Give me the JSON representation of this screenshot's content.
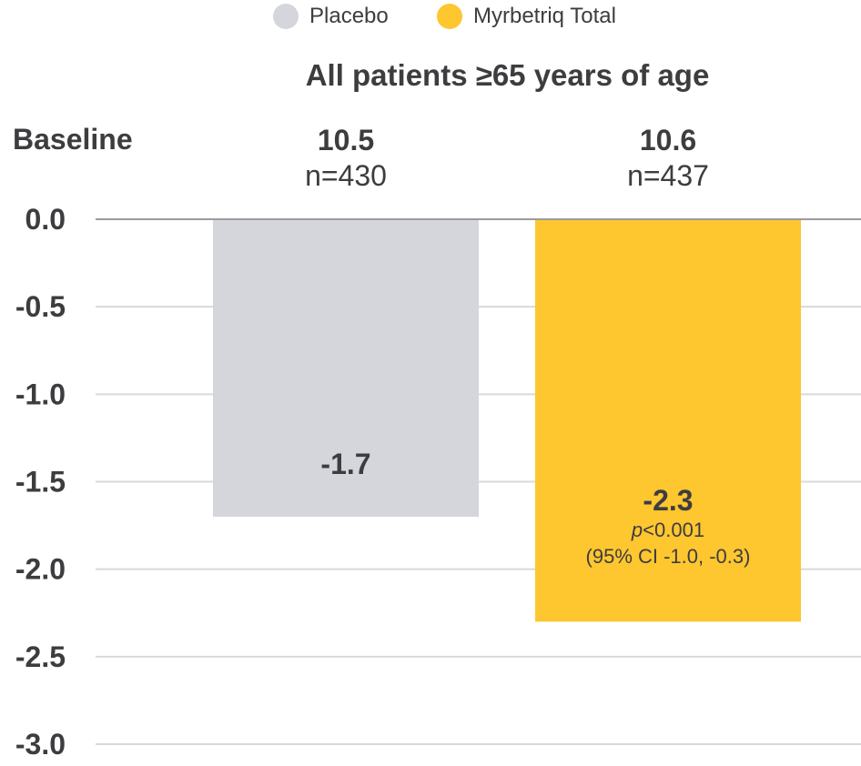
{
  "colors": {
    "placebo": "#d5d6db",
    "myrbetriq": "#fec62f",
    "grid": "#d9d9d9",
    "axis": "#9b9b9b",
    "text": "#3d3d40"
  },
  "legend": [
    {
      "label": "Placebo",
      "color": "#d5d6db"
    },
    {
      "label": "Myrbetriq Total",
      "color": "#fec62f"
    }
  ],
  "subtitle": "All patients ≥65 years of age",
  "baseline_label": "Baseline",
  "groups": [
    {
      "baseline": "10.5",
      "n": "n=430",
      "value_label": "-1.7"
    },
    {
      "baseline": "10.6",
      "n": "n=437",
      "value_label": "-2.3",
      "p_prefix": "p",
      "p_rest": "<0.001",
      "ci": "(95% CI -1.0, -0.3)"
    }
  ],
  "chart_data": {
    "type": "bar",
    "categories": [
      "Placebo",
      "Myrbetriq Total"
    ],
    "values": [
      -1.7,
      -2.3
    ],
    "ylim": [
      -3.0,
      0.0
    ],
    "yticks": [
      "0.0",
      "-0.5",
      "-1.0",
      "-1.5",
      "-2.0",
      "-2.5",
      "-3.0"
    ],
    "grid": true,
    "legend_position": "top-center"
  }
}
